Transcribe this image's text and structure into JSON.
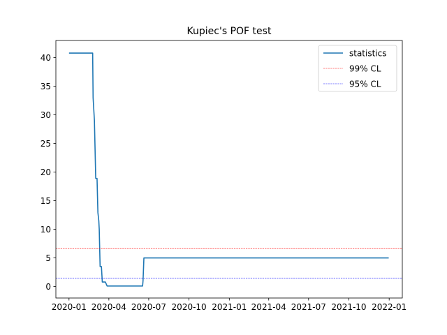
{
  "chart_data": {
    "type": "line",
    "title": "Kupiec's POF test",
    "xlabel": "",
    "ylabel": "",
    "x_axis_type": "date",
    "xlim": [
      "2019-12-02",
      "2022-01-31"
    ],
    "ylim": [
      -2.0,
      43.0
    ],
    "grid": false,
    "legend_position": "top-right",
    "x_ticks": [
      "2020-01",
      "2020-04",
      "2020-07",
      "2020-10",
      "2021-01",
      "2021-04",
      "2021-07",
      "2021-10",
      "2022-01"
    ],
    "y_ticks": [
      0,
      5,
      10,
      15,
      20,
      25,
      30,
      35,
      40
    ],
    "series": [
      {
        "name": "statistics",
        "color": "#1f77b4",
        "style": "solid",
        "points": [
          [
            "2020-01-01",
            40.8
          ],
          [
            "2020-02-24",
            40.8
          ],
          [
            "2020-02-25",
            33.0
          ],
          [
            "2020-02-28",
            29.0
          ],
          [
            "2020-03-02",
            18.9
          ],
          [
            "2020-03-05",
            18.9
          ],
          [
            "2020-03-06",
            15.8
          ],
          [
            "2020-03-07",
            12.9
          ],
          [
            "2020-03-09",
            11.5
          ],
          [
            "2020-03-10",
            10.0
          ],
          [
            "2020-03-12",
            3.5
          ],
          [
            "2020-03-15",
            3.5
          ],
          [
            "2020-03-17",
            0.8
          ],
          [
            "2020-03-24",
            0.8
          ],
          [
            "2020-03-28",
            0.1
          ],
          [
            "2020-06-17",
            0.1
          ],
          [
            "2020-06-18",
            1.0
          ],
          [
            "2020-06-20",
            5.0
          ],
          [
            "2021-12-31",
            5.0
          ]
        ]
      },
      {
        "name": "99% CL",
        "color": "#ff0000",
        "style": "dashed",
        "hline": 6.63
      },
      {
        "name": "95% CL",
        "color": "#0000ff",
        "style": "dashed",
        "hline": 1.5
      }
    ]
  }
}
